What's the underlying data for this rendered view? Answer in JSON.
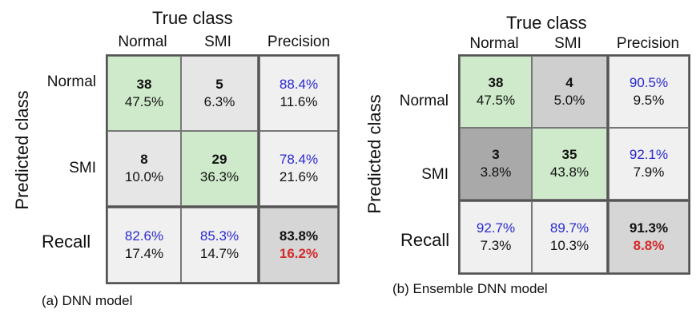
{
  "panels": [
    {
      "true_class_label": "True class",
      "predicted_class_label": "Predicted class",
      "col_labels": [
        "Normal",
        "SMI",
        "Precision"
      ],
      "row_labels": [
        "Normal",
        "SMI",
        "Recall"
      ],
      "caption": "(a) DNN model",
      "cells": [
        [
          {
            "top": "38",
            "bottom": "47.5%"
          },
          {
            "top": "5",
            "bottom": "6.3%"
          },
          {
            "top": "88.4%",
            "bottom": "11.6%"
          }
        ],
        [
          {
            "top": "8",
            "bottom": "10.0%"
          },
          {
            "top": "29",
            "bottom": "36.3%"
          },
          {
            "top": "78.4%",
            "bottom": "21.6%"
          }
        ],
        [
          {
            "top": "82.6%",
            "bottom": "17.4%"
          },
          {
            "top": "85.3%",
            "bottom": "14.7%"
          },
          {
            "top": "83.8%",
            "bottom": "16.2%"
          }
        ]
      ],
      "colors": [
        [
          "#cfeacb",
          "#e6e6e6",
          "#f0f0f0"
        ],
        [
          "#e6e6e6",
          "#cfeacb",
          "#f0f0f0"
        ],
        [
          "#f0f0f0",
          "#f0f0f0",
          "#d6d6d6"
        ]
      ]
    },
    {
      "true_class_label": "True class",
      "predicted_class_label": "Predicted class",
      "col_labels": [
        "Normal",
        "SMI",
        "Precision"
      ],
      "row_labels": [
        "Normal",
        "SMI",
        "Recall"
      ],
      "caption": "(b) Ensemble DNN model",
      "cells": [
        [
          {
            "top": "38",
            "bottom": "47.5%"
          },
          {
            "top": "4",
            "bottom": "5.0%"
          },
          {
            "top": "90.5%",
            "bottom": "9.5%"
          }
        ],
        [
          {
            "top": "3",
            "bottom": "3.8%"
          },
          {
            "top": "35",
            "bottom": "43.8%"
          },
          {
            "top": "92.1%",
            "bottom": "7.9%"
          }
        ],
        [
          {
            "top": "92.7%",
            "bottom": "7.3%"
          },
          {
            "top": "89.7%",
            "bottom": "10.3%"
          },
          {
            "top": "91.3%",
            "bottom": "8.8%"
          }
        ]
      ],
      "colors": [
        [
          "#cfeacb",
          "#cfcfcf",
          "#f0f0f0"
        ],
        [
          "#a9a9a9",
          "#cfeacb",
          "#f0f0f0"
        ],
        [
          "#f0f0f0",
          "#f0f0f0",
          "#d6d6d6"
        ]
      ]
    }
  ],
  "chart_data": [
    {
      "type": "table",
      "title": "",
      "columns": [
        "Normal",
        "SMI",
        "Precision"
      ],
      "rows": [
        "Normal",
        "SMI",
        "Recall"
      ],
      "counts": [
        [
          38,
          5
        ],
        [
          8,
          29
        ]
      ],
      "percentages": [
        [
          47.5,
          6.3
        ],
        [
          10.0,
          36.3
        ]
      ],
      "precision": [
        88.4,
        78.4
      ],
      "recall": [
        82.6,
        85.3
      ],
      "overall_accuracy": 83.8,
      "overall_error": 16.2
    },
    {
      "type": "table",
      "title": "",
      "columns": [
        "Normal",
        "SMI",
        "Precision"
      ],
      "rows": [
        "Normal",
        "SMI",
        "Recall"
      ],
      "counts": [
        [
          38,
          4
        ],
        [
          3,
          35
        ]
      ],
      "percentages": [
        [
          47.5,
          5.0
        ],
        [
          3.8,
          43.8
        ]
      ],
      "precision": [
        90.5,
        92.1
      ],
      "recall": [
        92.7,
        89.7
      ],
      "overall_accuracy": 91.3,
      "overall_error": 8.8
    }
  ]
}
